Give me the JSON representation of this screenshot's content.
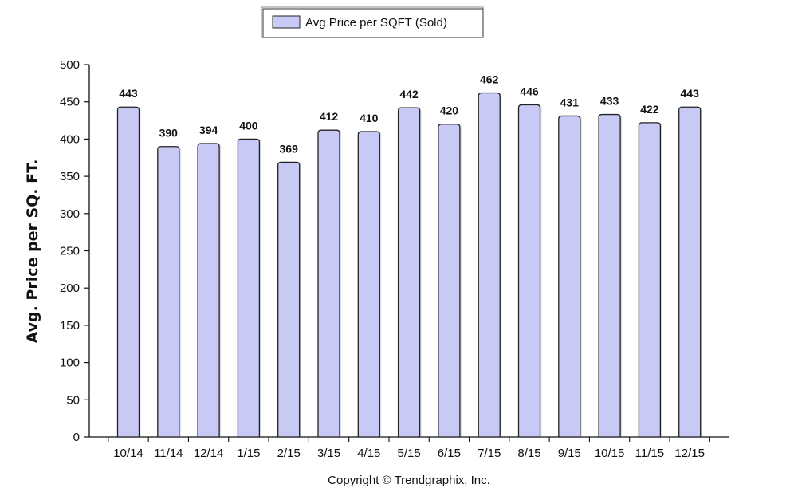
{
  "chart_data": {
    "type": "bar",
    "categories": [
      "10/14",
      "11/14",
      "12/14",
      "1/15",
      "2/15",
      "3/15",
      "4/15",
      "5/15",
      "6/15",
      "7/15",
      "8/15",
      "9/15",
      "10/15",
      "11/15",
      "12/15"
    ],
    "series": [
      {
        "name": "Avg Price per SQFT (Sold)",
        "values": [
          443,
          390,
          394,
          400,
          369,
          412,
          410,
          442,
          420,
          462,
          446,
          431,
          433,
          422,
          443
        ]
      }
    ],
    "data_labels": [
      "443",
      "390",
      "394",
      "400",
      "369",
      "412",
      "410",
      "442",
      "420",
      "462",
      "446",
      "431",
      "433",
      "422",
      "443"
    ],
    "ylabel": "Avg. Price per SQ. FT.",
    "xlabel": "",
    "ylim": [
      0,
      500
    ],
    "yticks": [
      0,
      50,
      100,
      150,
      200,
      250,
      300,
      350,
      400,
      450,
      500
    ],
    "ytick_labels": [
      "0",
      "50",
      "100",
      "150",
      "200",
      "250",
      "300",
      "350",
      "400",
      "450",
      "500"
    ],
    "grid": false,
    "legend_position": "top-center",
    "bar_fill_color": "#c9c9f5",
    "bar_edge_color": "#222222"
  },
  "legend": {
    "label": "Avg Price per SQFT (Sold)"
  },
  "copyright": "Copyright © Trendgraphix, Inc."
}
